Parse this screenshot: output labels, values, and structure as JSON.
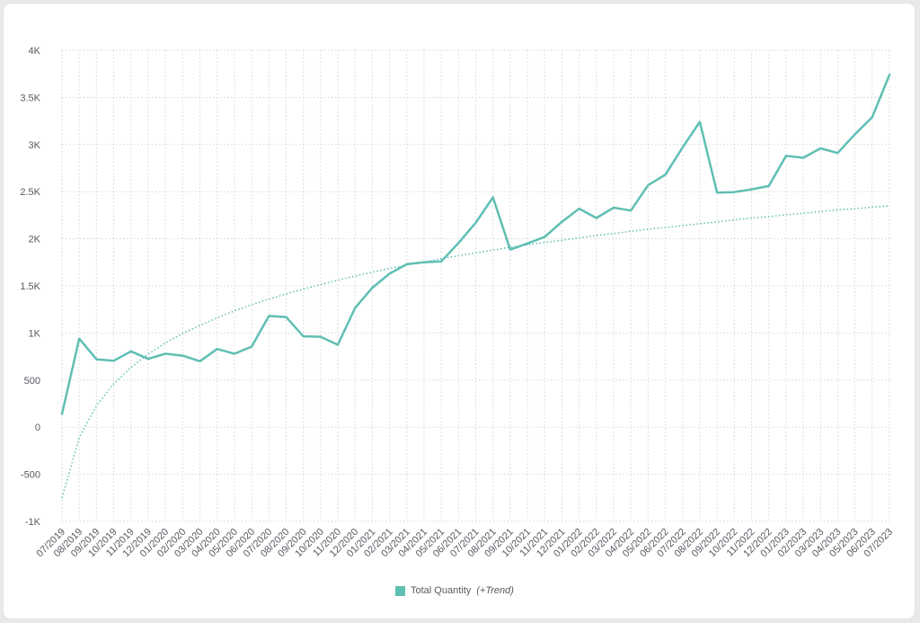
{
  "chart_data": {
    "type": "line",
    "title": "",
    "xlabel": "",
    "ylabel": "",
    "ylim": [
      -1000,
      4000
    ],
    "y_ticks": [
      {
        "value": -1000,
        "label": "-1K"
      },
      {
        "value": -500,
        "label": "-500"
      },
      {
        "value": 0,
        "label": "0"
      },
      {
        "value": 500,
        "label": "500"
      },
      {
        "value": 1000,
        "label": "1K"
      },
      {
        "value": 1500,
        "label": "1.5K"
      },
      {
        "value": 2000,
        "label": "2K"
      },
      {
        "value": 2500,
        "label": "2.5K"
      },
      {
        "value": 3000,
        "label": "3K"
      },
      {
        "value": 3500,
        "label": "3.5K"
      },
      {
        "value": 4000,
        "label": "4K"
      }
    ],
    "grid": true,
    "legend_position": "bottom-center",
    "categories": [
      "07/2019",
      "08/2019",
      "09/2019",
      "10/2019",
      "11/2019",
      "12/2019",
      "01/2020",
      "02/2020",
      "03/2020",
      "04/2020",
      "05/2020",
      "06/2020",
      "07/2020",
      "08/2020",
      "09/2020",
      "10/2020",
      "11/2020",
      "12/2020",
      "01/2021",
      "02/2021",
      "03/2021",
      "04/2021",
      "05/2021",
      "06/2021",
      "07/2021",
      "08/2021",
      "09/2021",
      "10/2021",
      "11/2021",
      "12/2021",
      "01/2022",
      "02/2022",
      "03/2022",
      "04/2022",
      "05/2022",
      "06/2022",
      "07/2022",
      "08/2022",
      "09/2022",
      "10/2022",
      "11/2022",
      "12/2022",
      "01/2023",
      "02/2023",
      "03/2023",
      "04/2023",
      "05/2023",
      "06/2023",
      "07/2023"
    ],
    "series": [
      {
        "name": "Total Quantity",
        "color": "#5fbfb3",
        "values": [
          140,
          940,
          720,
          705,
          805,
          725,
          780,
          760,
          700,
          830,
          780,
          855,
          1180,
          1170,
          965,
          960,
          875,
          1265,
          1480,
          1630,
          1730,
          1750,
          1760,
          1955,
          2170,
          2440,
          1885,
          1950,
          2020,
          2180,
          2320,
          2220,
          2330,
          2300,
          2570,
          2680,
          2970,
          3240,
          2490,
          2495,
          2525,
          2560,
          2880,
          2860,
          2960,
          2910,
          3110,
          3290,
          3740
        ]
      }
    ],
    "trend": {
      "type": "logarithmic",
      "color": "#5fbfb3",
      "values": [
        -750,
        -110,
        230,
        460,
        635,
        775,
        895,
        995,
        1080,
        1160,
        1235,
        1300,
        1360,
        1415,
        1465,
        1515,
        1560,
        1605,
        1645,
        1685,
        1720,
        1755,
        1790,
        1820,
        1850,
        1880,
        1910,
        1935,
        1960,
        1985,
        2010,
        2035,
        2055,
        2080,
        2100,
        2120,
        2140,
        2160,
        2180,
        2200,
        2220,
        2235,
        2255,
        2270,
        2290,
        2305,
        2320,
        2335,
        2350
      ]
    },
    "legend": {
      "label": "Total Quantity",
      "note": "(+Trend)"
    }
  }
}
